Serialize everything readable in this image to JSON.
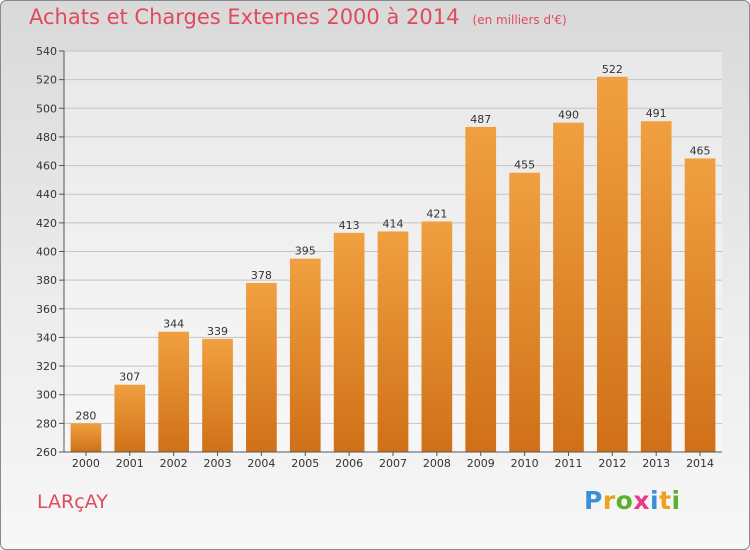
{
  "title": "Achats et Charges Externes 2000 à 2014",
  "subtitle": "(en milliers d'€)",
  "commune": "LARçAY",
  "logo": {
    "letters": [
      "P",
      "r",
      "o",
      "x",
      "i",
      "t",
      "i"
    ],
    "colors": [
      "#3a8fd6",
      "#f0a020",
      "#5cb030",
      "#e83a8a",
      "#3a8fd6",
      "#f0a020",
      "#5cb030"
    ]
  },
  "chart_data": {
    "type": "bar",
    "categories": [
      "2000",
      "2001",
      "2002",
      "2003",
      "2004",
      "2005",
      "2006",
      "2007",
      "2008",
      "2009",
      "2010",
      "2011",
      "2012",
      "2013",
      "2014"
    ],
    "values": [
      280,
      307,
      344,
      339,
      378,
      395,
      413,
      414,
      421,
      487,
      455,
      490,
      522,
      491,
      465
    ],
    "ylim": [
      260,
      540
    ],
    "yticks": [
      260,
      280,
      300,
      320,
      340,
      360,
      380,
      400,
      420,
      440,
      460,
      480,
      500,
      520,
      540
    ],
    "grid": true,
    "bar_color": "#f0a040",
    "bar_color_dark": "#d07018"
  }
}
